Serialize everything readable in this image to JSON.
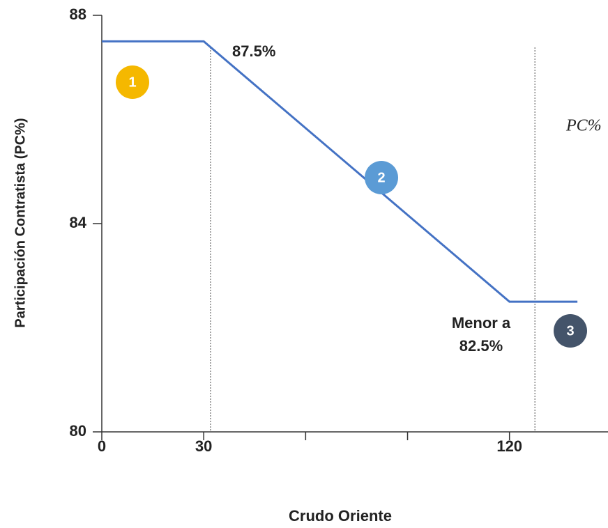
{
  "chart_data": {
    "type": "line",
    "x_label": "Crudo Oriente",
    "y_label": "Participación Contratista (PC%)",
    "xlim": [
      0,
      149
    ],
    "ylim": [
      80,
      88
    ],
    "xticks": [
      0,
      30,
      {
        "value": 60,
        "label": null
      },
      {
        "value": 90,
        "label": null
      },
      120
    ],
    "yticks": [
      80,
      84,
      88
    ],
    "series": [
      {
        "color": "#4472c4",
        "x": [
          0,
          30,
          120,
          140
        ],
        "values": [
          87.5,
          87.5,
          82.5,
          82.5
        ]
      }
    ],
    "reference_lines": {
      "x": [
        32,
        127.5
      ],
      "color": "#888"
    },
    "annotations": [
      "87.5%",
      "Menor a",
      "82.5%",
      "PC%"
    ],
    "segments": [
      {
        "label": "1",
        "color": "#f5b800"
      },
      {
        "label": "2",
        "color": "#5b9bd5"
      },
      {
        "label": "3",
        "color": "#44546a"
      }
    ]
  }
}
